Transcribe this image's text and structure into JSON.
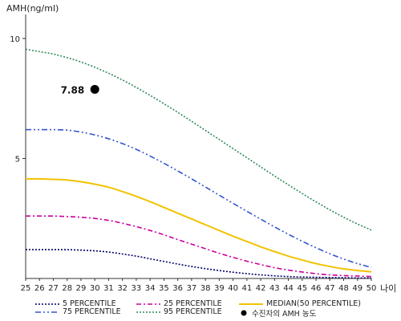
{
  "chart_data": {
    "type": "line",
    "title": "",
    "ylabel": "AMH(ng/ml)",
    "xlabel": "나이",
    "x": [
      25,
      26,
      27,
      28,
      29,
      30,
      31,
      32,
      33,
      34,
      35,
      36,
      37,
      38,
      39,
      40,
      41,
      42,
      43,
      44,
      45,
      46,
      47,
      48,
      49,
      50
    ],
    "xlim": [
      25,
      50
    ],
    "ylim": [
      0,
      11
    ],
    "yticks": [
      5,
      10
    ],
    "grid": false,
    "legend_position": "bottom",
    "series": [
      {
        "name": "5 PERCENTILE",
        "color": "#000066",
        "dash": "2,2",
        "values": [
          1.2,
          1.2,
          1.2,
          1.2,
          1.18,
          1.15,
          1.1,
          1.02,
          0.93,
          0.82,
          0.71,
          0.6,
          0.5,
          0.41,
          0.33,
          0.26,
          0.2,
          0.15,
          0.11,
          0.08,
          0.06,
          0.05,
          0.04,
          0.03,
          0.02,
          0.02
        ]
      },
      {
        "name": "25 PERCENTILE",
        "color": "#cc0099",
        "dash": "6,3,2,3",
        "values": [
          2.6,
          2.6,
          2.6,
          2.58,
          2.55,
          2.5,
          2.42,
          2.3,
          2.16,
          2.0,
          1.82,
          1.62,
          1.43,
          1.24,
          1.05,
          0.88,
          0.72,
          0.58,
          0.45,
          0.35,
          0.27,
          0.2,
          0.15,
          0.12,
          0.1,
          0.08
        ]
      },
      {
        "name": "MEDIAN(50 PERCENTILE)",
        "color": "#f2c200",
        "dash": "",
        "values": [
          4.15,
          4.15,
          4.13,
          4.1,
          4.03,
          3.93,
          3.8,
          3.62,
          3.42,
          3.2,
          2.96,
          2.72,
          2.48,
          2.24,
          2.0,
          1.76,
          1.54,
          1.32,
          1.12,
          0.93,
          0.77,
          0.62,
          0.5,
          0.4,
          0.33,
          0.28
        ]
      },
      {
        "name": "75 PERCENTILE",
        "color": "#3355cc",
        "dash": "7,3,2,3,2,3",
        "values": [
          6.2,
          6.2,
          6.2,
          6.18,
          6.1,
          5.98,
          5.82,
          5.62,
          5.38,
          5.1,
          4.8,
          4.48,
          4.15,
          3.81,
          3.47,
          3.13,
          2.8,
          2.47,
          2.15,
          1.84,
          1.55,
          1.28,
          1.03,
          0.81,
          0.62,
          0.46
        ]
      },
      {
        "name": "95 PERCENTILE",
        "color": "#2e8b57",
        "dash": "2,2",
        "values": [
          9.55,
          9.45,
          9.35,
          9.2,
          9.02,
          8.8,
          8.55,
          8.27,
          7.96,
          7.63,
          7.28,
          6.92,
          6.55,
          6.17,
          5.79,
          5.41,
          5.03,
          4.65,
          4.27,
          3.9,
          3.54,
          3.19,
          2.86,
          2.55,
          2.27,
          2.02
        ]
      }
    ],
    "markers": [
      {
        "name": "수진자의 AMH 농도",
        "x": 30,
        "y": 7.88,
        "label": "7.88",
        "color": "#000000"
      }
    ]
  }
}
